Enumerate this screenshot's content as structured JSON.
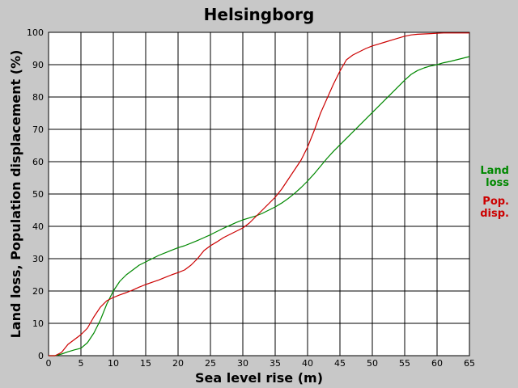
{
  "chart_data": {
    "type": "line",
    "title": "Helsingborg",
    "xlabel": "Sea level rise (m)",
    "ylabel": "Land loss, Population displacement (%)",
    "xlim": [
      0,
      65
    ],
    "ylim": [
      0,
      100
    ],
    "x_ticks": [
      0,
      5,
      10,
      15,
      20,
      25,
      30,
      35,
      40,
      45,
      50,
      55,
      60,
      65
    ],
    "y_ticks": [
      0,
      10,
      20,
      30,
      40,
      50,
      60,
      70,
      80,
      90,
      100
    ],
    "grid": true,
    "legend_position": "right",
    "series": [
      {
        "name": "Land loss",
        "legend_lines": [
          "Land",
          "loss"
        ],
        "color": "#008800",
        "x": [
          0,
          1,
          2,
          3,
          4,
          5,
          6,
          7,
          8,
          9,
          10,
          11,
          12,
          13,
          14,
          15,
          16,
          17,
          18,
          19,
          20,
          21,
          22,
          23,
          24,
          25,
          26,
          27,
          28,
          29,
          30,
          31,
          32,
          33,
          34,
          35,
          36,
          37,
          38,
          39,
          40,
          41,
          42,
          43,
          44,
          45,
          46,
          47,
          48,
          49,
          50,
          51,
          52,
          53,
          54,
          55,
          56,
          57,
          58,
          59,
          60,
          61,
          62,
          63,
          64,
          65
        ],
        "y": [
          0,
          0,
          0.5,
          1.2,
          1.8,
          2.3,
          4,
          7,
          11,
          16,
          20,
          23,
          25,
          26.5,
          28,
          29,
          30,
          31,
          31.8,
          32.6,
          33.4,
          34,
          34.8,
          35.6,
          36.5,
          37.4,
          38.4,
          39.4,
          40.3,
          41.2,
          42,
          42.6,
          43.2,
          44,
          45,
          46,
          47.2,
          48.6,
          50.2,
          52,
          54,
          56.2,
          58.6,
          61,
          63.2,
          65.2,
          67.2,
          69.2,
          71.2,
          73.2,
          75.2,
          77.2,
          79.2,
          81.2,
          83.2,
          85.2,
          87,
          88.2,
          89,
          89.6,
          90,
          90.6,
          91,
          91.5,
          92,
          92.5
        ]
      },
      {
        "name": "Pop. disp.",
        "legend_lines": [
          "Pop.",
          "disp."
        ],
        "color": "#cc0000",
        "x": [
          0,
          1,
          2,
          3,
          4,
          5,
          6,
          7,
          8,
          9,
          10,
          11,
          12,
          13,
          14,
          15,
          16,
          17,
          18,
          19,
          20,
          21,
          22,
          23,
          24,
          25,
          26,
          27,
          28,
          29,
          30,
          31,
          32,
          33,
          34,
          35,
          36,
          37,
          38,
          39,
          40,
          41,
          42,
          43,
          44,
          45,
          46,
          47,
          48,
          49,
          50,
          51,
          52,
          53,
          54,
          55,
          56,
          57,
          58,
          59,
          60,
          61,
          62,
          63,
          64,
          65
        ],
        "y": [
          0,
          0,
          1,
          3.5,
          5,
          6.5,
          8.5,
          12,
          15,
          17,
          18,
          18.8,
          19.5,
          20.3,
          21.2,
          22,
          22.7,
          23.4,
          24.2,
          25,
          25.7,
          26.5,
          28,
          30,
          32.5,
          34,
          35.2,
          36.5,
          37.5,
          38.5,
          39.5,
          41,
          43,
          45,
          47,
          49,
          51.5,
          54.5,
          57.5,
          60.5,
          64.5,
          69.5,
          75,
          79.5,
          84,
          88,
          91.5,
          93,
          94,
          95,
          95.8,
          96.4,
          97,
          97.6,
          98.2,
          98.8,
          99.2,
          99.4,
          99.5,
          99.6,
          99.7,
          99.8,
          99.8,
          99.8,
          99.8,
          99.8
        ]
      }
    ]
  }
}
